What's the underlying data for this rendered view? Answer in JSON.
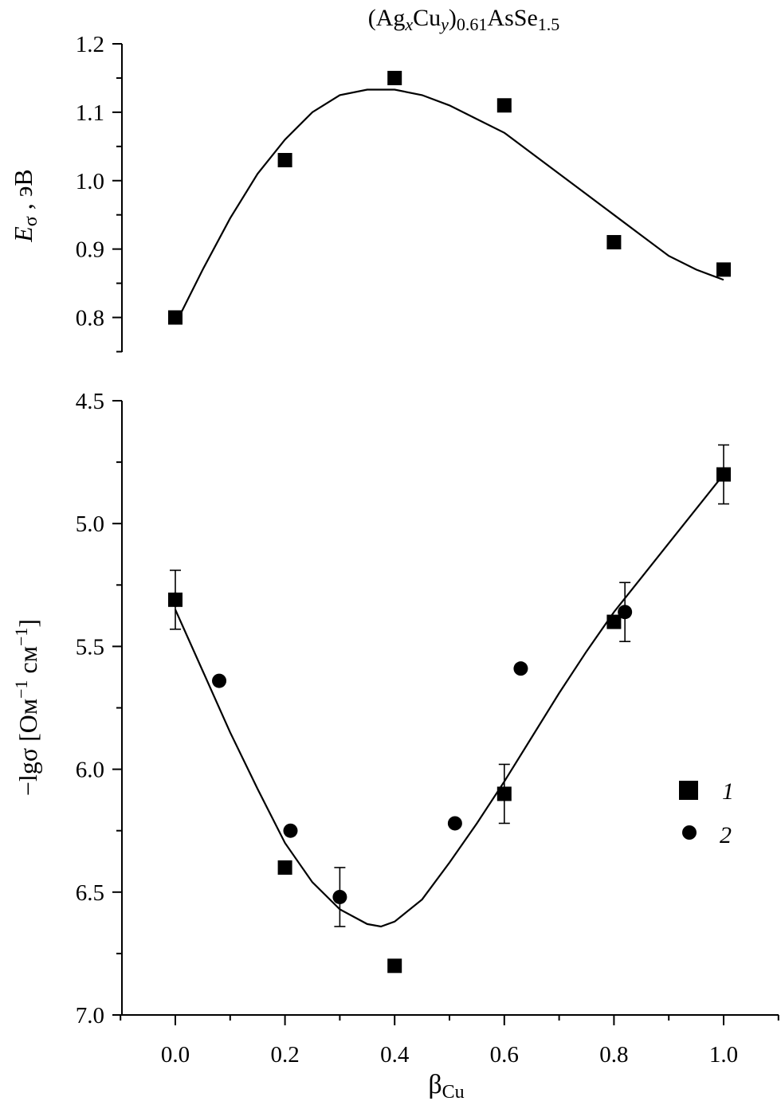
{
  "chart_data": [
    {
      "type": "scatter",
      "title": "(Ag_xCu_y)_0.61AsSe_1.5",
      "title_parts": {
        "a": "(Ag",
        "x": "x",
        "b": "Cu",
        "y": "y",
        "c": ")",
        "sub": "0.61",
        "d": "AsSe",
        "sub2": "1.5"
      },
      "ylabel_parts": {
        "main": "E",
        "sub": "σ",
        "unit": " , эВ"
      },
      "xlim": [
        -0.1,
        1.1
      ],
      "ylim": [
        0.75,
        1.2
      ],
      "yticks": [
        "0.8",
        "0.9",
        "1.0",
        "1.1",
        "1.2"
      ],
      "grid": false,
      "series": [
        {
          "marker": "square",
          "x": [
            0.0,
            0.2,
            0.4,
            0.6,
            0.8,
            1.0
          ],
          "y": [
            0.8,
            1.03,
            1.15,
            1.11,
            0.91,
            0.87
          ]
        },
        {
          "marker": "fit-line",
          "x": [
            0.0,
            0.05,
            0.1,
            0.15,
            0.2,
            0.25,
            0.3,
            0.35,
            0.4,
            0.45,
            0.5,
            0.55,
            0.6,
            0.65,
            0.7,
            0.75,
            0.8,
            0.85,
            0.9,
            0.95,
            1.0
          ],
          "y": [
            0.79,
            0.87,
            0.945,
            1.01,
            1.06,
            1.1,
            1.125,
            1.133,
            1.133,
            1.125,
            1.11,
            1.09,
            1.07,
            1.04,
            1.01,
            0.98,
            0.95,
            0.92,
            0.89,
            0.87,
            0.855
          ]
        }
      ]
    },
    {
      "type": "scatter",
      "xlabel_parts": {
        "main": "β",
        "sub": "Cu"
      },
      "ylabel_parts": {
        "a": "−lgσ [Ом",
        "e1": "−1",
        "b": " см",
        "e2": "−1",
        "c": "]"
      },
      "xlim": [
        -0.1,
        1.1
      ],
      "ylim": [
        4.5,
        7.0
      ],
      "y_inverted": true,
      "xticks": [
        "0.0",
        "0.2",
        "0.4",
        "0.6",
        "0.8",
        "1.0"
      ],
      "yticks": [
        "4.5",
        "5.0",
        "5.5",
        "6.0",
        "6.5",
        "7.0"
      ],
      "grid": false,
      "legend_placement": "right",
      "series": [
        {
          "name": "1",
          "marker": "square",
          "x": [
            0.0,
            0.2,
            0.4,
            0.6,
            0.8,
            1.0
          ],
          "y": [
            5.31,
            6.4,
            6.8,
            6.1,
            5.4,
            4.8
          ]
        },
        {
          "name": "2",
          "marker": "circle",
          "x": [
            0.0,
            0.08,
            0.21,
            0.3,
            0.51,
            0.63,
            0.82,
            1.0
          ],
          "y": [
            5.31,
            5.64,
            6.25,
            6.52,
            6.22,
            5.59,
            5.36,
            4.8
          ]
        },
        {
          "marker": "errorbars",
          "x": [
            0.0,
            0.3,
            0.6,
            0.82,
            1.0
          ],
          "y": [
            5.31,
            6.52,
            6.1,
            5.36,
            4.8
          ],
          "err": [
            0.12,
            0.12,
            0.12,
            0.12,
            0.12
          ]
        },
        {
          "marker": "fit-line",
          "x": [
            0.0,
            0.05,
            0.1,
            0.15,
            0.2,
            0.25,
            0.3,
            0.35,
            0.375,
            0.4,
            0.45,
            0.5,
            0.55,
            0.6,
            0.65,
            0.7,
            0.75,
            0.8,
            0.85,
            0.9,
            0.95,
            1.0
          ],
          "y": [
            5.35,
            5.6,
            5.85,
            6.08,
            6.3,
            6.46,
            6.57,
            6.63,
            6.64,
            6.62,
            6.53,
            6.38,
            6.22,
            6.05,
            5.87,
            5.69,
            5.52,
            5.36,
            5.22,
            5.08,
            4.94,
            4.8
          ]
        }
      ],
      "legend": [
        {
          "label": "1",
          "marker": "square"
        },
        {
          "label": "2",
          "marker": "circle"
        }
      ]
    }
  ]
}
